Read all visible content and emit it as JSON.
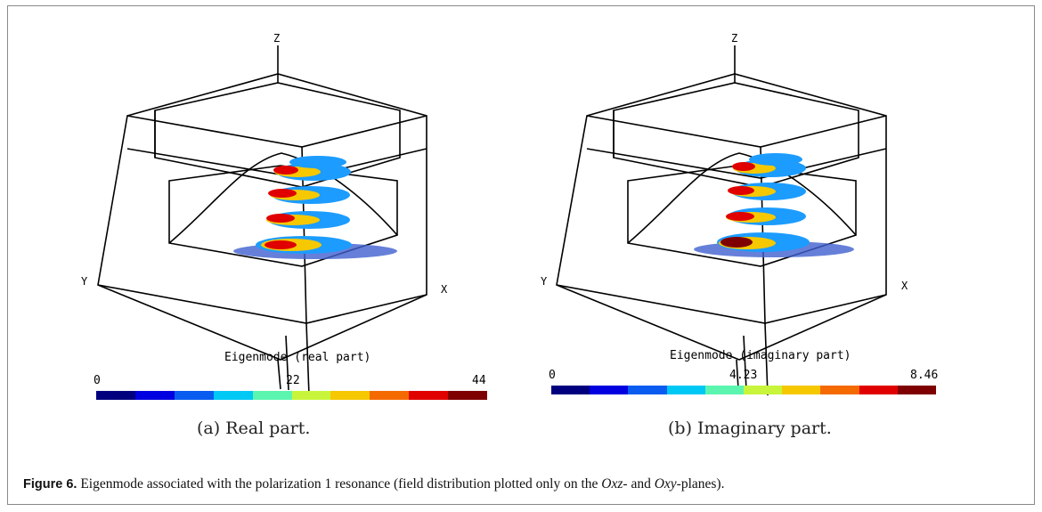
{
  "panel_a": {
    "axis_z": "Z",
    "axis_y": "Y",
    "axis_x": "X",
    "colorbar_title": "Eigenmode (real part)",
    "colorbar_min": "0",
    "colorbar_mid": "22",
    "colorbar_max": "44",
    "subcaption": "(a) Real part."
  },
  "panel_b": {
    "axis_z": "Z",
    "axis_y": "Y",
    "axis_x": "X",
    "colorbar_title": "Eigenmode (imaginary part)",
    "colorbar_min": "0",
    "colorbar_mid": "4.23",
    "colorbar_max": "8.46",
    "subcaption": "(b) Imaginary part."
  },
  "colormap": [
    "#00007f",
    "#0000e0",
    "#0a5cf0",
    "#00c8f5",
    "#5cf5b0",
    "#c8f53c",
    "#f5c800",
    "#f56a00",
    "#e00000",
    "#7f0000"
  ],
  "caption": {
    "label": "Figure 6.",
    "text_1": " Eigenmode associated with the polarization 1 resonance (field distribution plotted only on the ",
    "plane_1": "Oxz",
    "text_2": "- and ",
    "plane_2": "Oxy",
    "text_3": "-planes)."
  }
}
